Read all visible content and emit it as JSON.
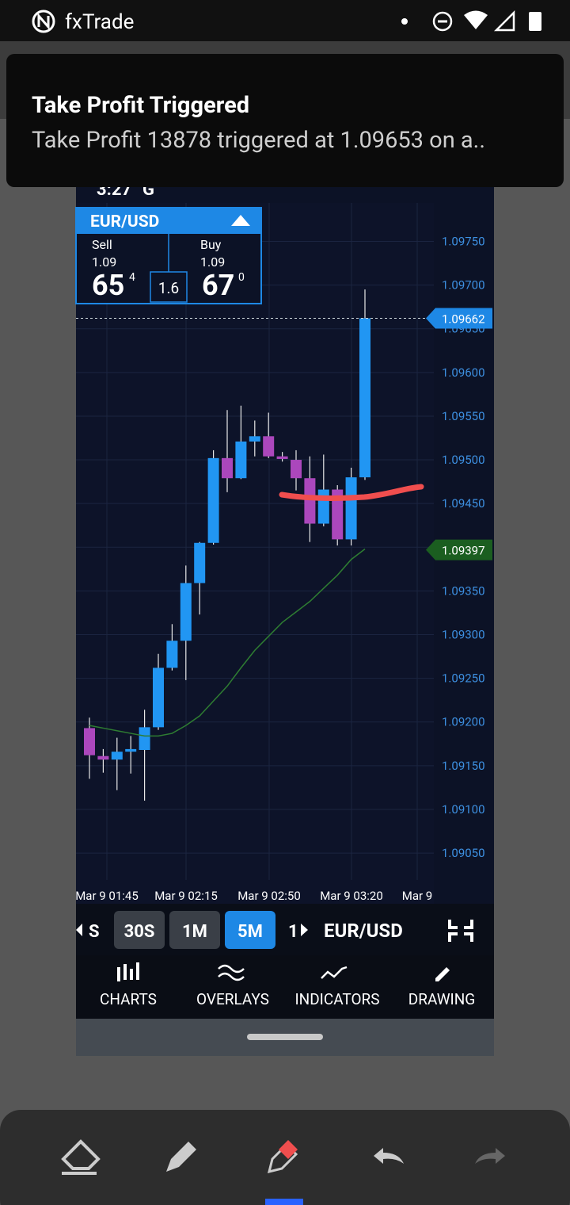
{
  "status_bar": {
    "app": "fxTrade"
  },
  "notification": {
    "title": "Take Profit Triggered",
    "text": "Take Profit 13878 triggered at 1.09653 on a.."
  },
  "inner_status": {
    "time": "3:27",
    "carrier": "G"
  },
  "ticker": {
    "symbol": "EUR/USD",
    "sell": {
      "label": "Sell",
      "big": "1.09",
      "pips": "65",
      "fraction": "4"
    },
    "spread": "1.6",
    "buy": {
      "label": "Buy",
      "big": "1.09",
      "pips": "67",
      "fraction": "0"
    }
  },
  "chart_data": {
    "type": "candlestick",
    "open": [
      1.09193,
      1.09161,
      1.09157,
      1.09166,
      1.09168,
      1.09194,
      1.09262,
      1.09293,
      1.09359,
      1.09405,
      1.09502,
      1.09479,
      1.09521,
      1.09527,
      1.09504,
      1.095,
      1.09479,
      1.09427,
      1.09466,
      1.09409,
      1.0948
    ],
    "high": [
      1.09205,
      1.09169,
      1.09182,
      1.09184,
      1.09214,
      1.09278,
      1.09312,
      1.09379,
      1.09406,
      1.09511,
      1.09557,
      1.09562,
      1.09545,
      1.09554,
      1.09509,
      1.09511,
      1.09504,
      1.09506,
      1.09471,
      1.09491,
      1.09695
    ],
    "low": [
      1.09135,
      1.09142,
      1.09122,
      1.09141,
      1.0911,
      1.09191,
      1.09259,
      1.09248,
      1.09323,
      1.09403,
      1.09463,
      1.09478,
      1.09504,
      1.09502,
      1.09498,
      1.09465,
      1.09406,
      1.09424,
      1.09402,
      1.09402,
      1.09477
    ],
    "close": [
      1.09162,
      1.09157,
      1.09166,
      1.09169,
      1.09194,
      1.09262,
      1.09293,
      1.09359,
      1.09405,
      1.09502,
      1.09479,
      1.09521,
      1.09527,
      1.09504,
      1.09501,
      1.09479,
      1.09427,
      1.09466,
      1.09409,
      1.0948,
      1.09662
    ],
    "up_color": "#2196f3",
    "down_color": "#ab47bc",
    "overlay": {
      "color": "#2e7d32",
      "values": [
        1.09196,
        1.09193,
        1.0919,
        1.09187,
        1.09184,
        1.09184,
        1.09187,
        1.09196,
        1.09207,
        1.09224,
        1.09241,
        1.09262,
        1.09282,
        1.09298,
        1.09314,
        1.09326,
        1.09338,
        1.09353,
        1.09368,
        1.09386,
        1.09398
      ]
    },
    "price_labels": [
      {
        "value": 1.09662,
        "color": "#1e88e5"
      },
      {
        "value": 1.09397,
        "color": "#1b5e20"
      }
    ],
    "ylim": [
      1.08992,
      1.09794
    ],
    "yticks": [
      {
        "value": 1.0975,
        "label": "1.09750"
      },
      {
        "value": 1.097,
        "label": "1.09700"
      },
      {
        "value": 1.0965,
        "label": "1.09650"
      },
      {
        "value": 1.096,
        "label": "1.09600"
      },
      {
        "value": 1.0955,
        "label": "1.09550"
      },
      {
        "value": 1.095,
        "label": "1.09500"
      },
      {
        "value": 1.0945,
        "label": "1.09450"
      },
      {
        "value": 1.094,
        "label": "1.09400"
      },
      {
        "value": 1.0935,
        "label": "1.09350"
      },
      {
        "value": 1.093,
        "label": "1.09300"
      },
      {
        "value": 1.0925,
        "label": "1.09250"
      },
      {
        "value": 1.092,
        "label": "1.09200"
      },
      {
        "value": 1.0915,
        "label": "1.09150"
      },
      {
        "value": 1.091,
        "label": "1.09100"
      },
      {
        "value": 1.0905,
        "label": "1.09050"
      }
    ],
    "xticks": [
      "Mar 9 01:45",
      "Mar 9 02:15",
      "Mar 9 02:50",
      "Mar 9 03:20",
      "Mar 9"
    ],
    "grid": true
  },
  "timeframes": [
    "S",
    "30S",
    "1M",
    "5M",
    "1"
  ],
  "active_timeframe": "5M",
  "instrument": "EUR/USD",
  "toolbar": [
    "CHARTS",
    "OVERLAYS",
    "INDICATORS",
    "DRAWING"
  ]
}
